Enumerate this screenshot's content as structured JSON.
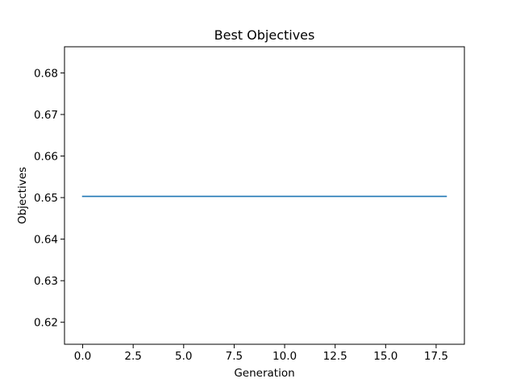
{
  "chart_data": {
    "type": "line",
    "title": "Best Objectives",
    "xlabel": "Generation",
    "ylabel": "Objectives",
    "xlim": [
      -0.9,
      18.9
    ],
    "ylim": [
      0.6147,
      0.6863
    ],
    "x_ticks": [
      0.0,
      2.5,
      5.0,
      7.5,
      10.0,
      12.5,
      15.0,
      17.5
    ],
    "x_tick_labels": [
      "0.0",
      "2.5",
      "5.0",
      "7.5",
      "10.0",
      "12.5",
      "15.0",
      "17.5"
    ],
    "y_ticks": [
      0.62,
      0.63,
      0.64,
      0.65,
      0.66,
      0.67,
      0.68
    ],
    "y_tick_labels": [
      "0.62",
      "0.63",
      "0.64",
      "0.65",
      "0.66",
      "0.67",
      "0.68"
    ],
    "grid": false,
    "series": [
      {
        "color": "#1f77b4",
        "x": [
          0,
          1,
          2,
          3,
          4,
          5,
          6,
          7,
          8,
          9,
          10,
          11,
          12,
          13,
          14,
          15,
          16,
          17,
          18
        ],
        "y": [
          0.6503,
          0.6503,
          0.6503,
          0.6503,
          0.6503,
          0.6503,
          0.6503,
          0.6503,
          0.6503,
          0.6503,
          0.6503,
          0.6503,
          0.6503,
          0.6503,
          0.6503,
          0.6503,
          0.6503,
          0.6503,
          0.6503
        ]
      }
    ]
  }
}
